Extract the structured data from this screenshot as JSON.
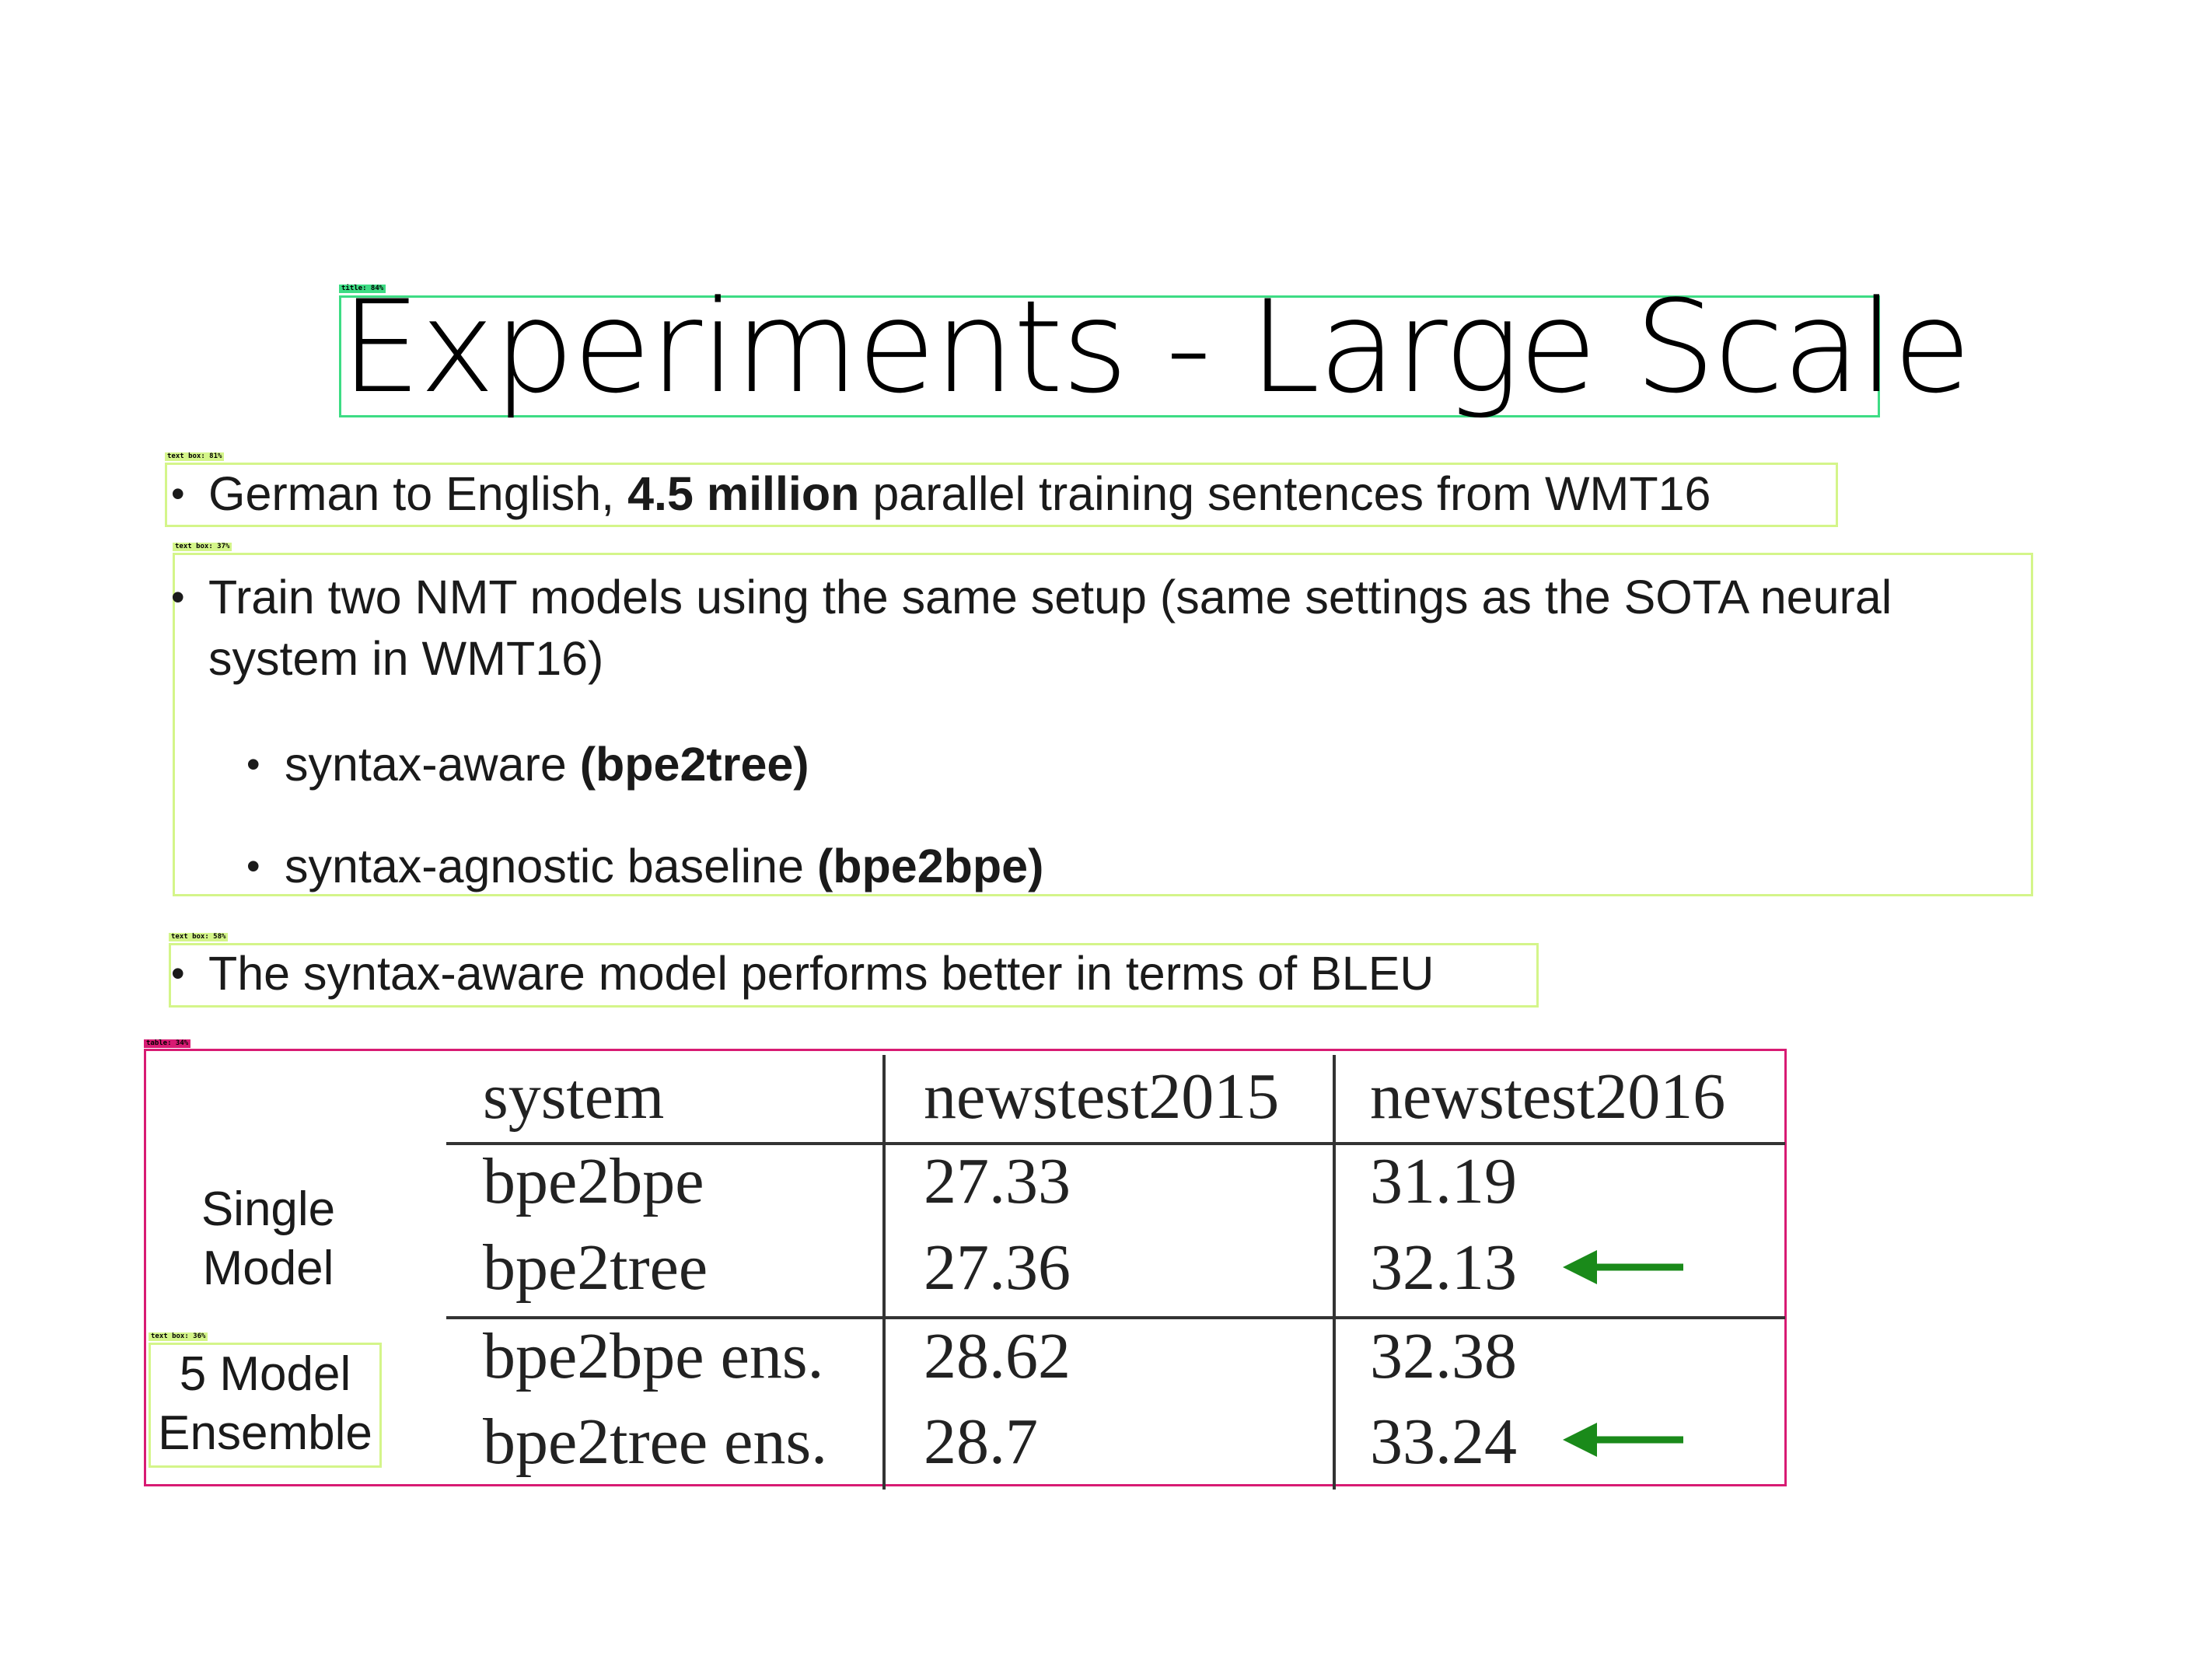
{
  "title": "Experiments - Large Scale",
  "tags": {
    "title": "title: 84%",
    "tb1": "text box: 81%",
    "tb2": "text box: 37%",
    "tb3": "text box: 58%",
    "table": "table: 34%",
    "tb4": "text box: 36%"
  },
  "bullets": {
    "b1_pre": "German to English, ",
    "b1_bold": "4.5 million",
    "b1_post": " parallel training sentences from WMT16",
    "b2_line1": "Train two NMT models using the same setup (same settings as the SOTA neural",
    "b2_line2": "system in WMT16)",
    "sub1_pre": "syntax-aware ",
    "sub1_bold": "(bpe2tree)",
    "sub2_pre": "syntax-agnostic baseline ",
    "sub2_bold": "(bpe2bpe)",
    "b3": "The syntax-aware model performs better in terms of BLEU"
  },
  "bullet_char": "•",
  "table": {
    "headers": [
      "system",
      "newstest2015",
      "newstest2016"
    ],
    "rows": [
      [
        "bpe2bpe",
        "27.33",
        "31.19"
      ],
      [
        "bpe2tree",
        "27.36",
        "32.13"
      ],
      [
        "bpe2bpe ens.",
        "28.62",
        "32.38"
      ],
      [
        "bpe2tree ens.",
        "28.7",
        "33.24"
      ]
    ],
    "group_labels": {
      "single_line1": "Single",
      "single_line2": "Model",
      "ensemble_line1": "5 Model",
      "ensemble_line2": "Ensemble"
    }
  },
  "colors": {
    "arrow": "#1a8a1a",
    "title_box": "#3ddc84",
    "text_box": "#d4f58a",
    "table_box": "#d81b73"
  }
}
